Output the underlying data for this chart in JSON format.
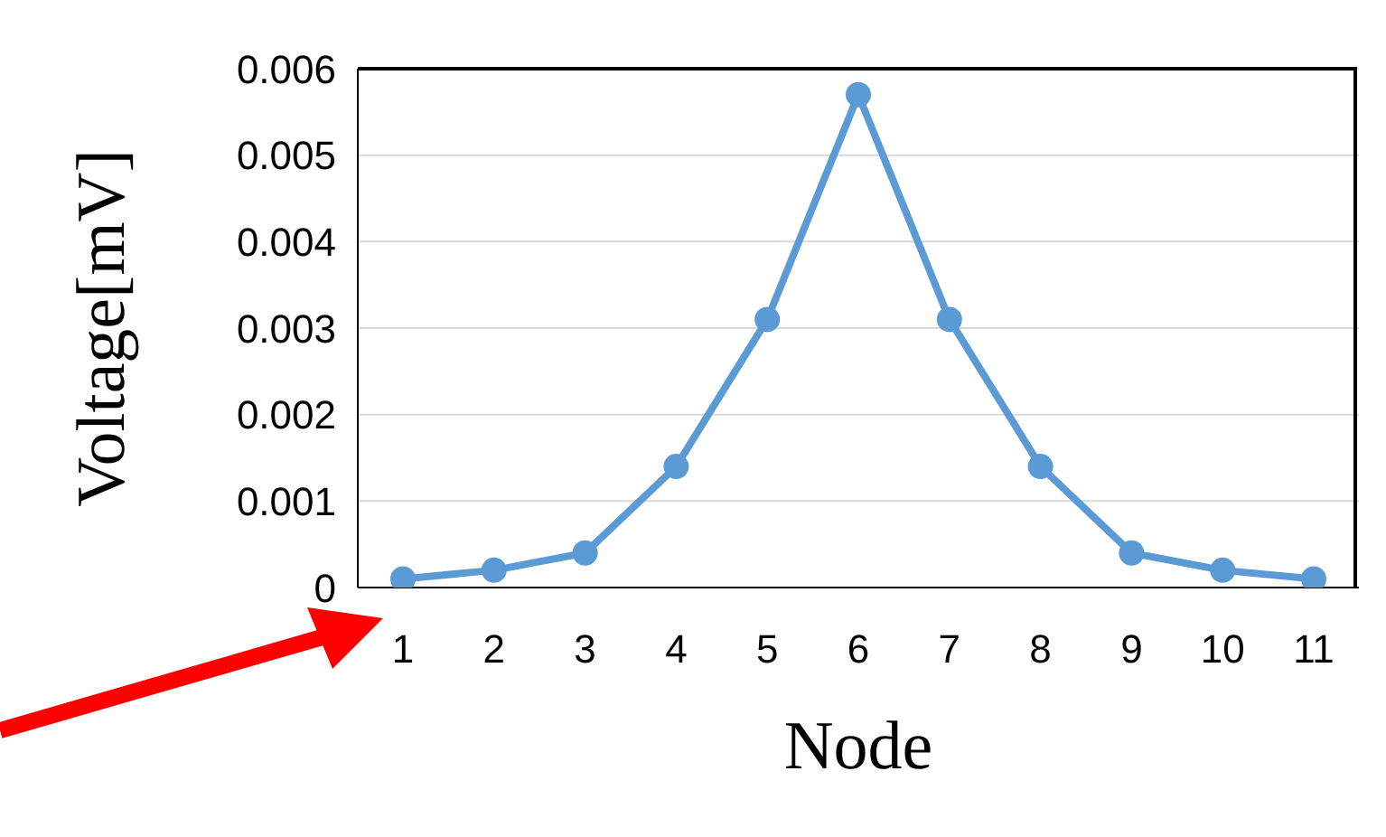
{
  "chart_data": {
    "type": "line",
    "xlabel": "Node",
    "ylabel": "Voltage[mV]",
    "categories": [
      "1",
      "2",
      "3",
      "4",
      "5",
      "6",
      "7",
      "8",
      "9",
      "10",
      "11"
    ],
    "series": [
      {
        "color": "#5b9bd5",
        "values": [
          0.0001,
          0.0002,
          0.0004,
          0.0014,
          0.0031,
          0.0057,
          0.0031,
          0.0014,
          0.0004,
          0.0002,
          0.0001
        ]
      }
    ],
    "ylim": [
      0,
      0.006
    ],
    "yticks": [
      0,
      0.001,
      0.002,
      0.003,
      0.004,
      0.005,
      0.006
    ],
    "grid": "y",
    "marker": "circle",
    "line_style": "solid",
    "legend": false
  }
}
